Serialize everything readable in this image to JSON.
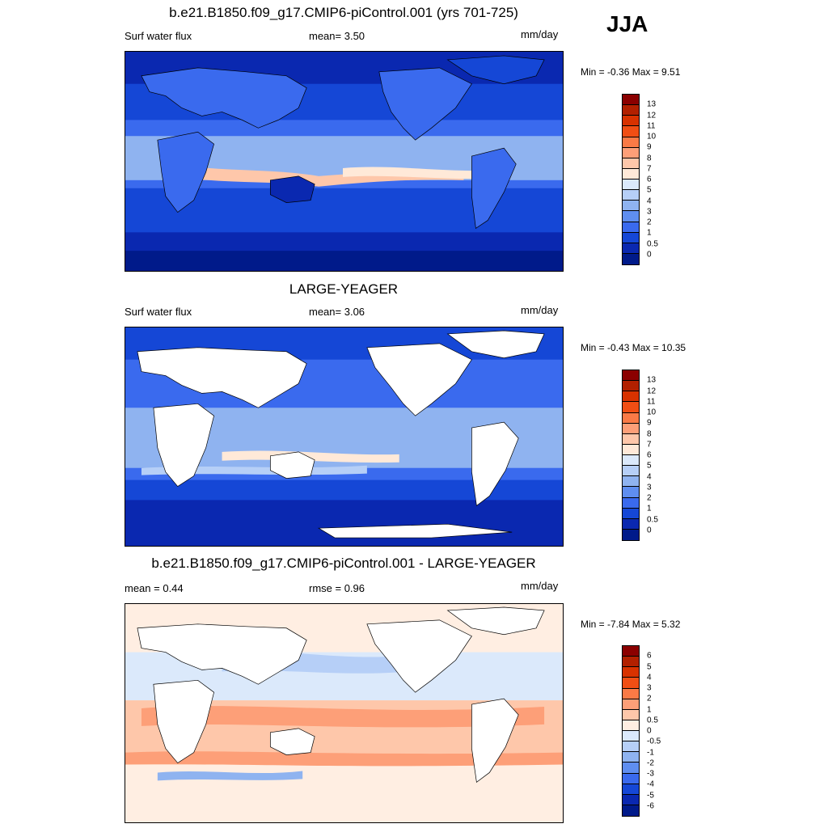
{
  "season": "JJA",
  "panels": [
    {
      "title": "b.e21.B1850.f09_g17.CMIP6-piControl.001 (yrs 701-725)",
      "left_label": "Surf water flux",
      "center_label": "mean=   3.50",
      "units": "mm/day",
      "minmax": "Min =  -0.36 Max =    9.51",
      "colorbar_labels": [
        "13",
        "12",
        "11",
        "10",
        "9",
        "8",
        "7",
        "6",
        "5",
        "4",
        "3",
        "2",
        "1",
        "0.5",
        "0"
      ],
      "colorbar_colors": [
        "#8b0000",
        "#b22000",
        "#d83200",
        "#f04e14",
        "#fa7a46",
        "#fd9f78",
        "#fec7aa",
        "#ffe9d8",
        "#dbe9fb",
        "#b6cff7",
        "#8fb3f0",
        "#5f8ef0",
        "#3a6aee",
        "#1547d6",
        "#0a28b0",
        "#001a8a"
      ]
    },
    {
      "title": "LARGE-YEAGER",
      "left_label": "Surf water flux",
      "center_label": "mean=   3.06",
      "units": "mm/day",
      "minmax": "Min =  -0.43 Max =  10.35",
      "colorbar_labels": [
        "13",
        "12",
        "11",
        "10",
        "9",
        "8",
        "7",
        "6",
        "5",
        "4",
        "3",
        "2",
        "1",
        "0.5",
        "0"
      ],
      "colorbar_colors": [
        "#8b0000",
        "#b22000",
        "#d83200",
        "#f04e14",
        "#fa7a46",
        "#fd9f78",
        "#fec7aa",
        "#ffe9d8",
        "#dbe9fb",
        "#b6cff7",
        "#8fb3f0",
        "#5f8ef0",
        "#3a6aee",
        "#1547d6",
        "#0a28b0",
        "#001a8a"
      ]
    },
    {
      "title": "b.e21.B1850.f09_g17.CMIP6-piControl.001 - LARGE-YEAGER",
      "left_label": "mean =   0.44",
      "center_label": "rmse =   0.96",
      "units": "mm/day",
      "minmax": "Min =  -7.84 Max =    5.32",
      "colorbar_labels": [
        "6",
        "5",
        "4",
        "3",
        "2",
        "1",
        "0.5",
        "0",
        "-0.5",
        "-1",
        "-2",
        "-3",
        "-4",
        "-5",
        "-6"
      ],
      "colorbar_colors": [
        "#8b0000",
        "#b22000",
        "#d83200",
        "#f04e14",
        "#fa7a46",
        "#fd9f78",
        "#fec7aa",
        "#ffeee2",
        "#dbe9fb",
        "#b6cff7",
        "#8fb3f0",
        "#5f8ef0",
        "#3a6aee",
        "#1547d6",
        "#0a28b0",
        "#001a8a"
      ]
    }
  ]
}
